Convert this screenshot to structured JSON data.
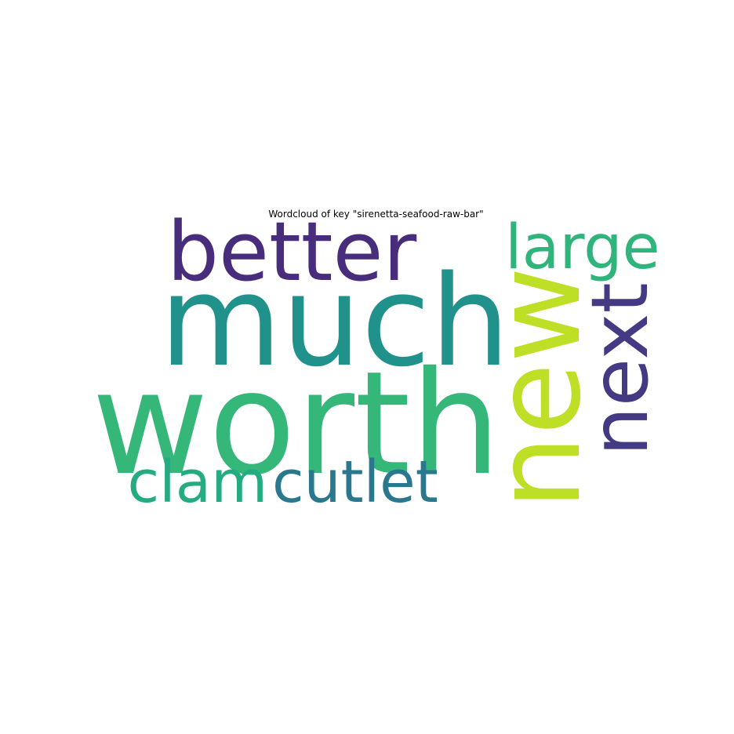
{
  "chart_data": {
    "type": "wordcloud",
    "title": "Wordcloud of key \"sirenetta-seafood-raw-bar\"",
    "words": [
      {
        "text": "worth",
        "color": "#35b779",
        "orientation": "horizontal"
      },
      {
        "text": "much",
        "color": "#21918c",
        "orientation": "horizontal"
      },
      {
        "text": "new",
        "color": "#bddf26",
        "orientation": "vertical"
      },
      {
        "text": "better",
        "color": "#472d7b",
        "orientation": "horizontal"
      },
      {
        "text": "next",
        "color": "#443983",
        "orientation": "vertical"
      },
      {
        "text": "large",
        "color": "#2fb47c",
        "orientation": "horizontal"
      },
      {
        "text": "cutlet",
        "color": "#2a788e",
        "orientation": "horizontal"
      },
      {
        "text": "clam",
        "color": "#25ab82",
        "orientation": "horizontal"
      }
    ]
  }
}
